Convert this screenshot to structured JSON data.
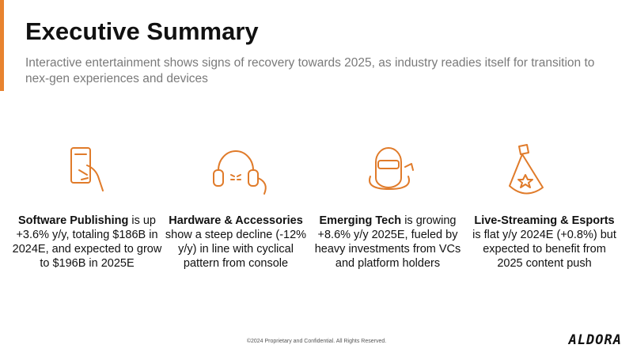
{
  "header": {
    "title": "Executive Summary",
    "subtitle": "Interactive entertainment shows signs of recovery towards 2025, as industry readies itself for transition to nex-gen experiences and devices"
  },
  "columns": [
    {
      "lead": "Software Publishing",
      "text": " is up +3.6% y/y, totaling $186B in 2024E, and expected to grow to $196B in 2025E"
    },
    {
      "lead": "Hardware & Accessories",
      "text": " show a steep decline (-12% y/y) in line with cyclical pattern from console"
    },
    {
      "lead": "Emerging Tech",
      "text": " is growing +8.6% y/y 2025E, fueled by heavy investments from VCs and platform holders"
    },
    {
      "lead": "Live-Streaming & Esports",
      "text": " is flat y/y 2024E (+0.8%) but expected to benefit from 2025 content push"
    }
  ],
  "footer": {
    "copyright": "©2024 Proprietary and Confidential. All Rights Reserved.",
    "logo": "ALDORA"
  }
}
